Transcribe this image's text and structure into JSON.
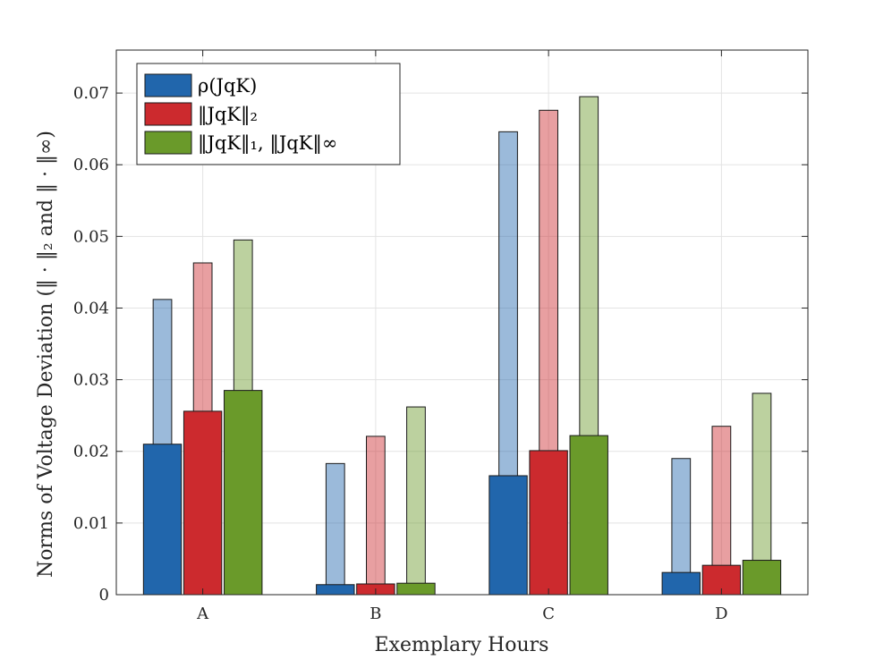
{
  "chart_data": {
    "type": "bar",
    "xlabel": "Exemplary Hours",
    "ylabel": "Norms of Voltage Deviation (‖ · ‖₂ and ‖ · ‖∞)",
    "categories": [
      "A",
      "B",
      "C",
      "D"
    ],
    "ylim": [
      0,
      0.076
    ],
    "yticks": [
      0,
      0.01,
      0.02,
      0.03,
      0.04,
      0.05,
      0.06,
      0.07
    ],
    "ytick_labels": [
      "0",
      "0.01",
      "0.02",
      "0.03",
      "0.04",
      "0.05",
      "0.06",
      "0.07"
    ],
    "grid": true,
    "legend_position": "top-left",
    "series": [
      {
        "name": "ρ(JqK)",
        "color": "#2166ac",
        "values_solid": [
          0.021,
          0.0014,
          0.0166,
          0.0031
        ],
        "values_light": [
          0.0412,
          0.0183,
          0.0646,
          0.019
        ]
      },
      {
        "name": "‖JqK‖₂",
        "color": "#cc2a2e",
        "values_solid": [
          0.0256,
          0.0015,
          0.0201,
          0.0041
        ],
        "values_light": [
          0.0463,
          0.0221,
          0.0676,
          0.0235
        ]
      },
      {
        "name": "‖JqK‖₁, ‖JqK‖∞",
        "color": "#6a9a2a",
        "values_solid": [
          0.0285,
          0.0016,
          0.0222,
          0.0048
        ],
        "values_light": [
          0.0495,
          0.0262,
          0.0695,
          0.0281
        ]
      }
    ]
  }
}
